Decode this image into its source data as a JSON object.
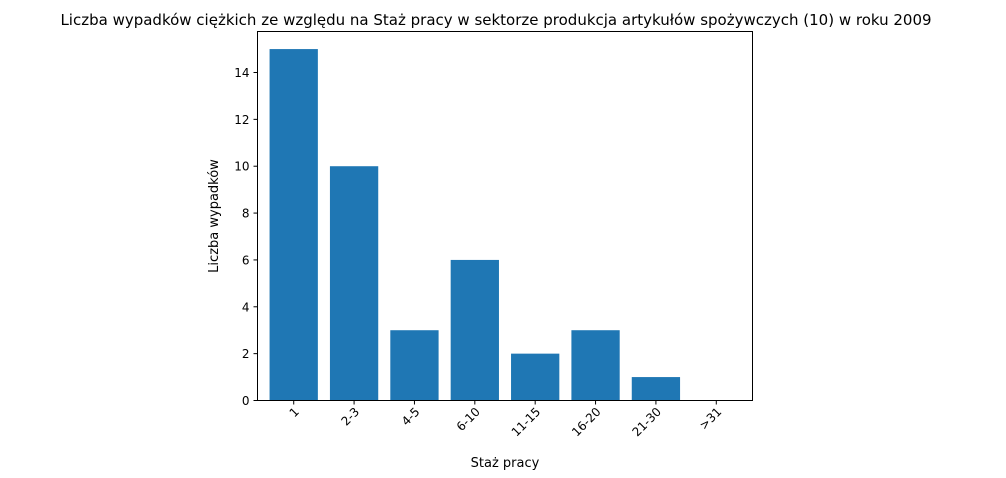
{
  "chart_data": {
    "type": "bar",
    "title": "Liczba wypadków ciężkich ze względu na Staż pracy w sektorze produkcja artykułów spożywczych  (10)   w roku 2009",
    "xlabel": "Staż pracy",
    "ylabel": "Liczba wypadków",
    "categories": [
      "1",
      "2-3",
      "4-5",
      "6-10",
      "11-15",
      "16-20",
      "21-30",
      ">31"
    ],
    "values": [
      15,
      10,
      3,
      6,
      2,
      3,
      1,
      0
    ],
    "ylim": [
      0,
      15.75
    ],
    "yticks": [
      0,
      2,
      4,
      6,
      8,
      10,
      12,
      14
    ],
    "bar_color": "#1f77b4",
    "grid": false,
    "legend": "none"
  }
}
